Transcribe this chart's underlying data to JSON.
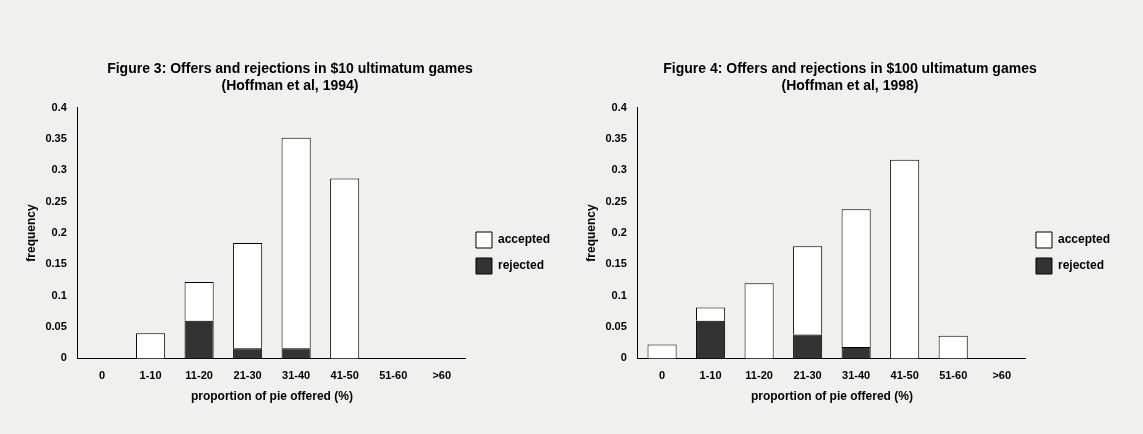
{
  "chart_data": [
    {
      "type": "bar",
      "title": "Figure 3: Offers and rejections in $10 ultimatum games (Hoffman et al, 1994)",
      "xlabel": "proportion of pie offered (%)",
      "ylabel": "frequency",
      "categories": [
        "0",
        "1-10",
        "11-20",
        "21-30",
        "31-40",
        "41-50",
        "51-60",
        ">60"
      ],
      "series": [
        {
          "name": "rejected",
          "color": "#333333",
          "values": [
            0,
            0,
            0.06,
            0.016,
            0.016,
            0,
            0,
            0
          ]
        },
        {
          "name": "accepted",
          "color": "#ffffff",
          "values": [
            0,
            0.04,
            0.062,
            0.168,
            0.336,
            0.287,
            0,
            0
          ]
        }
      ],
      "stacked": true,
      "ylim": [
        0,
        0.4
      ],
      "yticks": [
        0,
        0.05,
        0.1,
        0.15,
        0.2,
        0.25,
        0.3,
        0.35,
        0.4
      ],
      "grid": false,
      "legend": "right"
    },
    {
      "type": "bar",
      "title": "Figure 4: Offers and rejections in $100 ultimatum games (Hoffman et al, 1998)",
      "xlabel": "proportion of pie offered (%)",
      "ylabel": "frequency",
      "categories": [
        "0",
        "1-10",
        "11-20",
        "21-30",
        "31-40",
        "41-50",
        "51-60",
        ">60"
      ],
      "series": [
        {
          "name": "rejected",
          "color": "#333333",
          "values": [
            0,
            0.06,
            0,
            0.038,
            0.018,
            0,
            0,
            0
          ]
        },
        {
          "name": "accepted",
          "color": "#ffffff",
          "values": [
            0.022,
            0.021,
            0.12,
            0.141,
            0.22,
            0.317,
            0.036,
            0
          ]
        }
      ],
      "stacked": true,
      "ylim": [
        0,
        0.4
      ],
      "yticks": [
        0,
        0.05,
        0.1,
        0.15,
        0.2,
        0.25,
        0.3,
        0.35,
        0.4
      ],
      "grid": false,
      "legend": "right"
    }
  ]
}
